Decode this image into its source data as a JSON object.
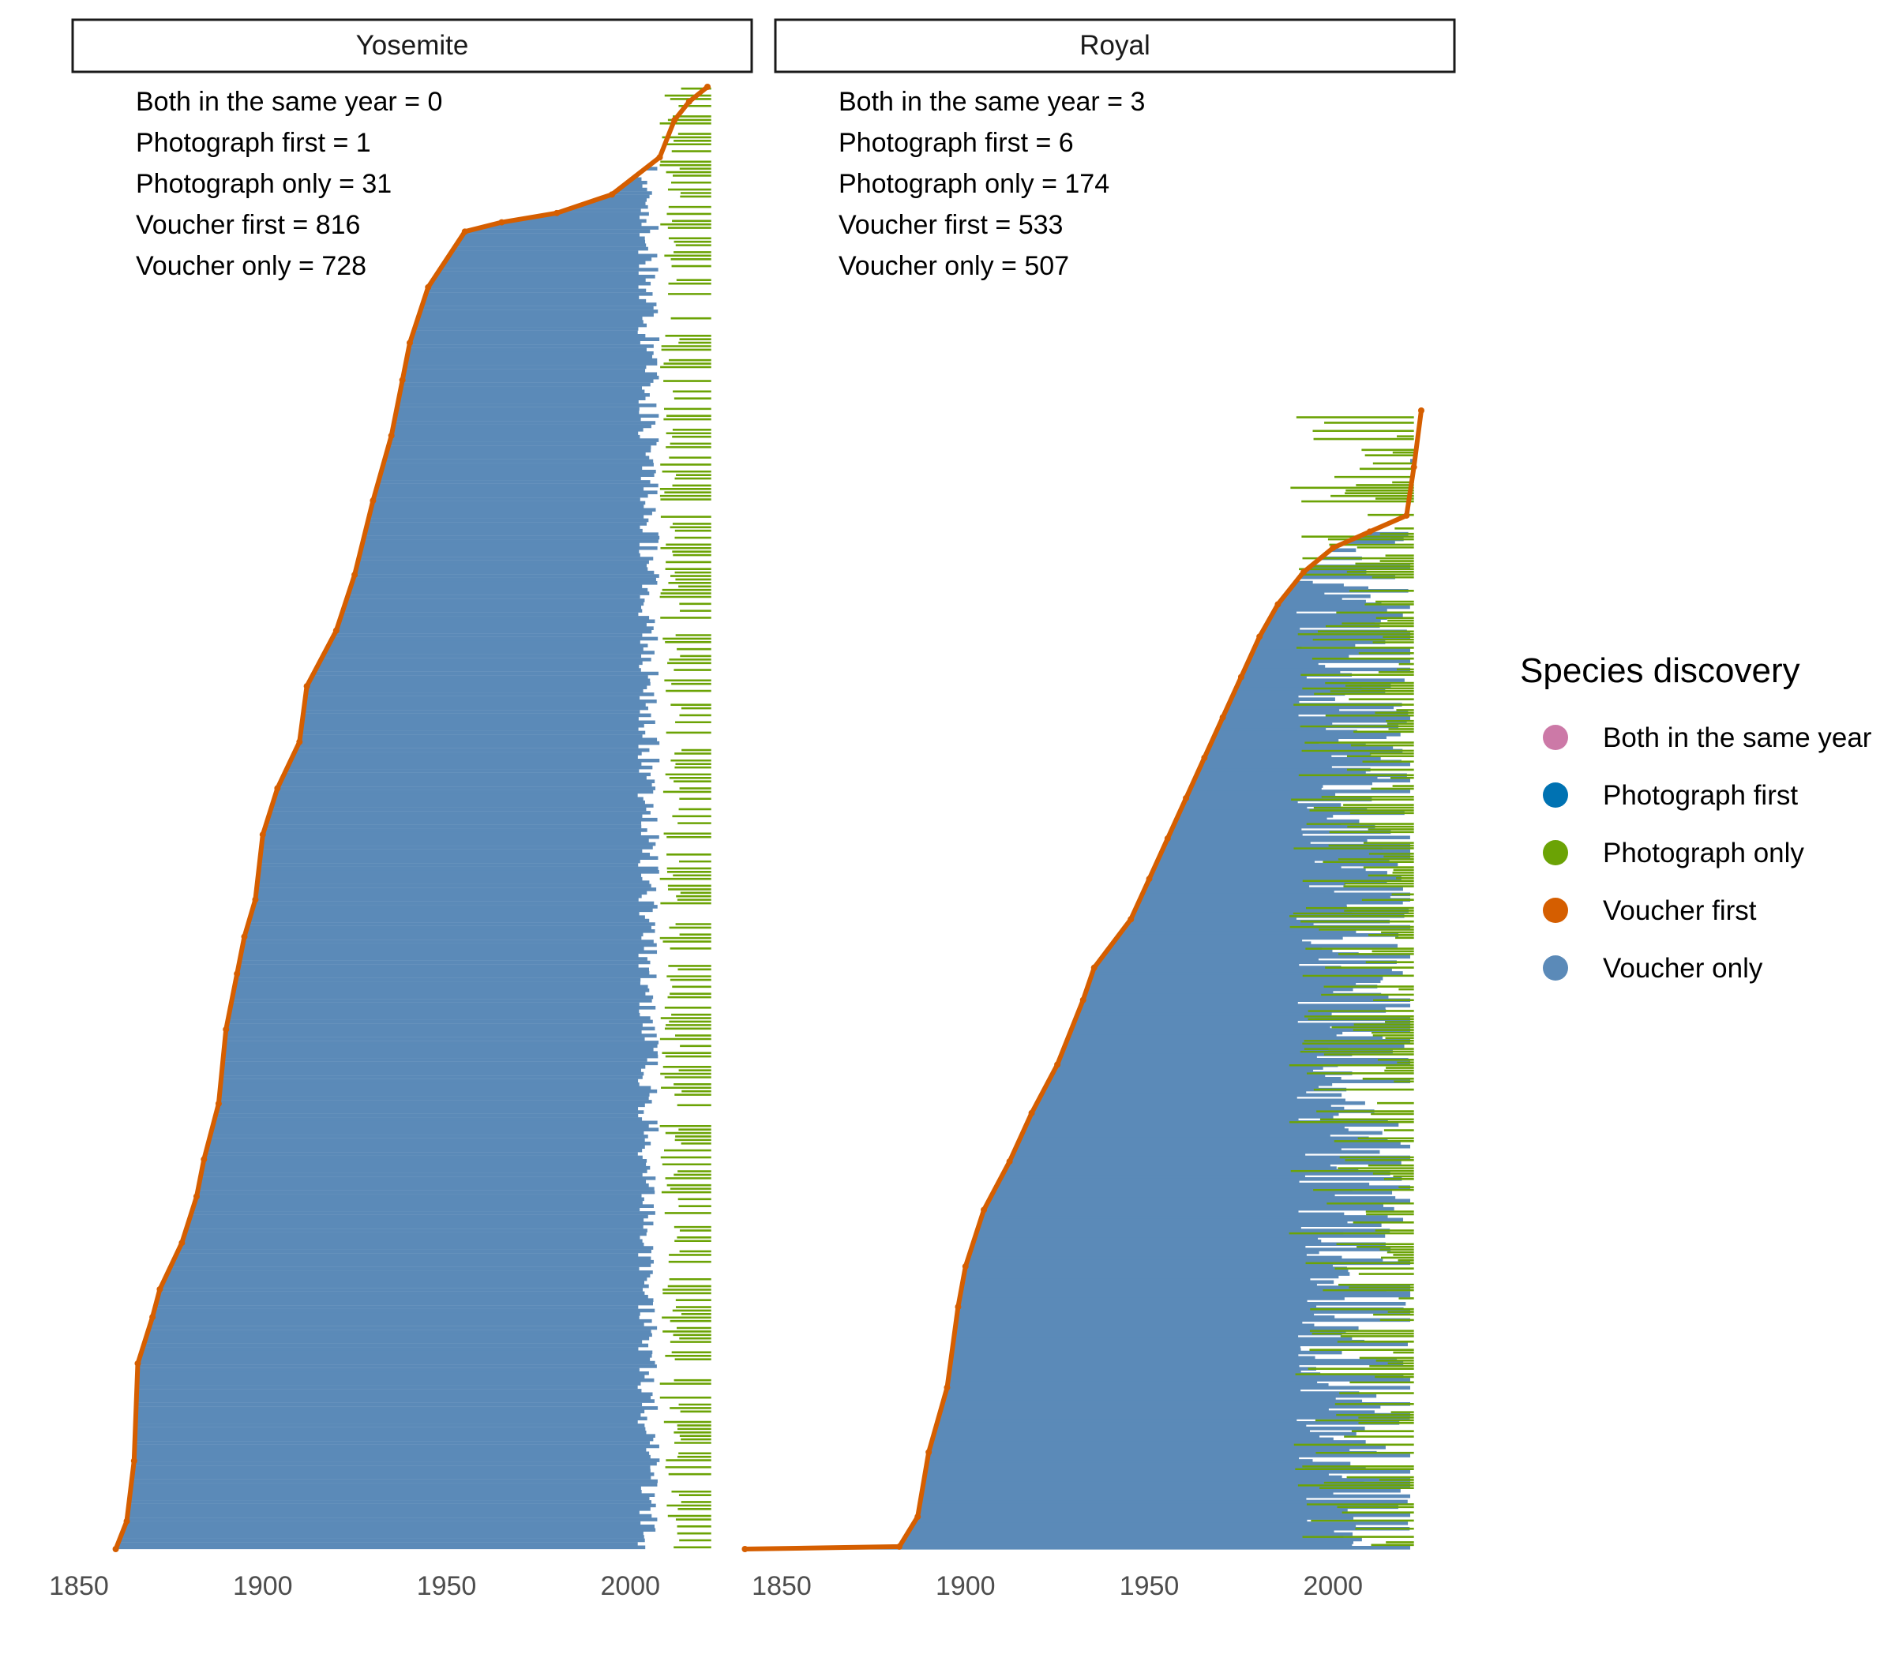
{
  "colors": {
    "both_same_year": "#CC79A7",
    "photograph_first": "#0072B2",
    "photograph_only": "#6BA305",
    "voucher_first": "#D55E00",
    "voucher_only": "#5B8AB8"
  },
  "legend": {
    "title": "Species discovery",
    "items": [
      {
        "label": "Both in the same year",
        "color": "#CC79A7"
      },
      {
        "label": "Photograph first",
        "color": "#0072B2"
      },
      {
        "label": "Photograph only",
        "color": "#6BA305"
      },
      {
        "label": "Voucher first",
        "color": "#D55E00"
      },
      {
        "label": "Voucher only",
        "color": "#5B8AB8"
      }
    ],
    "position": "right"
  },
  "chart_data": [
    {
      "type": "line",
      "panel": "Yosemite",
      "counts": [
        "Both in the same year = 0",
        "Photograph first = 1",
        "Photograph only = 31",
        "Voucher first = 816",
        "Voucher only = 728"
      ],
      "x_ticks": [
        "1850",
        "1900",
        "1950",
        "2000"
      ],
      "xlim": [
        1850,
        2024
      ],
      "grid": false,
      "series": [
        {
          "name": "Voucher first",
          "description": "first-record year versus cumulative species rank",
          "x": [
            1860,
            1863,
            1865,
            1866,
            1870,
            1872,
            1878,
            1882,
            1884,
            1888,
            1890,
            1893,
            1895,
            1898,
            1900,
            1904,
            1910,
            1912,
            1920,
            1925,
            1930,
            1935,
            1938,
            1940,
            1945,
            1955,
            1965,
            1980,
            1995,
            2008,
            2012,
            2016,
            2021
          ],
          "y": [
            0,
            30,
            95,
            200,
            250,
            280,
            330,
            380,
            420,
            480,
            560,
            620,
            660,
            700,
            770,
            820,
            870,
            930,
            990,
            1050,
            1130,
            1200,
            1260,
            1300,
            1360,
            1420,
            1430,
            1440,
            1460,
            1500,
            1540,
            1560,
            1576
          ]
        }
      ]
    },
    {
      "type": "line",
      "panel": "Royal",
      "counts": [
        "Both in the same year = 3",
        "Photograph first = 6",
        "Photograph only = 174",
        "Voucher first = 533",
        "Voucher only = 507"
      ],
      "x_ticks": [
        "1850",
        "1900",
        "1950",
        "2000"
      ],
      "xlim": [
        1850,
        2024
      ],
      "grid": false,
      "series": [
        {
          "name": "Voucher first",
          "description": "first-record year versus cumulative species rank",
          "x": [
            1840,
            1882,
            1887,
            1890,
            1895,
            1898,
            1900,
            1905,
            1912,
            1918,
            1925,
            1932,
            1935,
            1945,
            1950,
            1955,
            1960,
            1965,
            1970,
            1975,
            1980,
            1985,
            1992,
            2000,
            2010,
            2020,
            2022,
            2024
          ],
          "y": [
            0,
            3,
            40,
            120,
            200,
            300,
            350,
            420,
            480,
            540,
            600,
            680,
            720,
            780,
            830,
            880,
            930,
            980,
            1030,
            1080,
            1130,
            1170,
            1210,
            1240,
            1260,
            1280,
            1340,
            1410
          ]
        }
      ]
    }
  ]
}
